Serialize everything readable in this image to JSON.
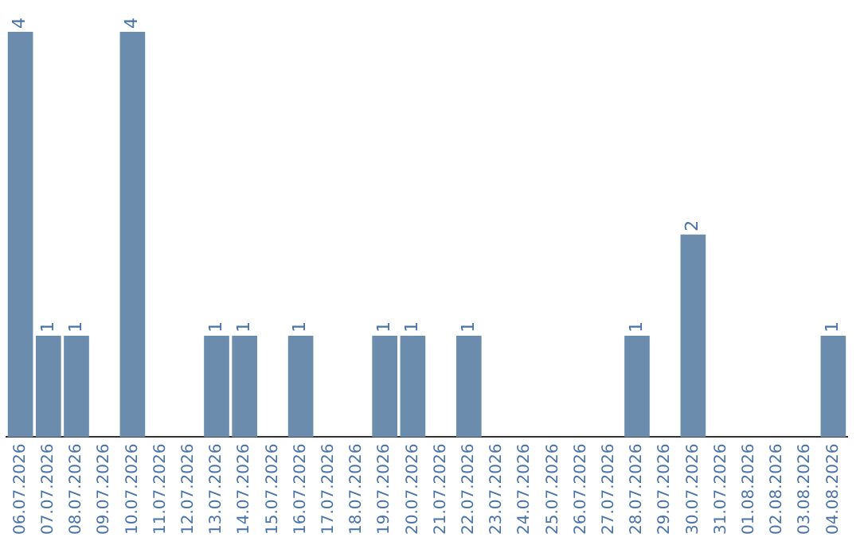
{
  "chart_data": {
    "type": "bar",
    "categories": [
      "06.07.2026",
      "07.07.2026",
      "08.07.2026",
      "09.07.2026",
      "10.07.2026",
      "11.07.2026",
      "12.07.2026",
      "13.07.2026",
      "14.07.2026",
      "15.07.2026",
      "16.07.2026",
      "17.07.2026",
      "18.07.2026",
      "19.07.2026",
      "20.07.2026",
      "21.07.2026",
      "22.07.2026",
      "23.07.2026",
      "24.07.2026",
      "25.07.2026",
      "26.07.2026",
      "27.07.2026",
      "28.07.2026",
      "29.07.2026",
      "30.07.2026",
      "31.07.2026",
      "01.08.2026",
      "02.08.2026",
      "03.08.2026",
      "04.08.2026"
    ],
    "values": [
      4,
      1,
      1,
      0,
      4,
      0,
      0,
      1,
      1,
      0,
      1,
      0,
      0,
      1,
      1,
      0,
      1,
      0,
      0,
      0,
      0,
      0,
      1,
      0,
      2,
      0,
      0,
      0,
      0,
      1
    ],
    "value_labels": [
      "4",
      "1",
      "1",
      null,
      "4",
      null,
      null,
      "1",
      "1",
      null,
      "1",
      null,
      null,
      "1",
      "1",
      null,
      "1",
      null,
      null,
      null,
      null,
      null,
      "1",
      null,
      "2",
      null,
      null,
      null,
      null,
      "1"
    ],
    "color": "#6b8cac",
    "grid": false,
    "legend": false
  }
}
